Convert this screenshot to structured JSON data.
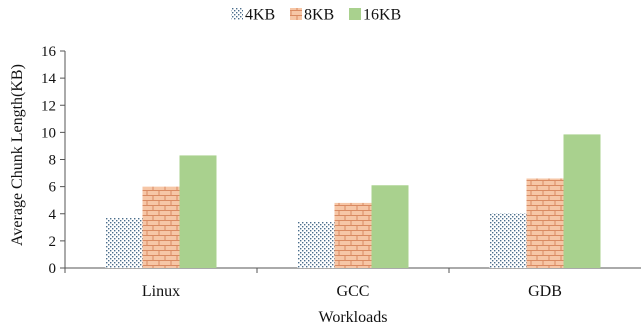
{
  "chart_data": {
    "type": "bar",
    "title": "",
    "xlabel": "Workloads",
    "ylabel": "Average Chunk Length(KB)",
    "categories": [
      "Linux",
      "GCC",
      "GDB"
    ],
    "ylim": [
      0,
      16
    ],
    "yticks": [
      0,
      2,
      4,
      6,
      8,
      10,
      12,
      14,
      16
    ],
    "grid": false,
    "legend_position": "top-center",
    "series": [
      {
        "name": "4KB",
        "values": [
          3.7,
          3.4,
          4.05
        ],
        "color": "#6f8fa8",
        "pattern": "dots"
      },
      {
        "name": "8KB",
        "values": [
          6.0,
          4.8,
          6.6
        ],
        "color": "#f4c1a0",
        "pattern": "bricks"
      },
      {
        "name": "16KB",
        "values": [
          8.3,
          6.1,
          9.85
        ],
        "color": "#a9d18e",
        "pattern": "solid"
      }
    ]
  }
}
